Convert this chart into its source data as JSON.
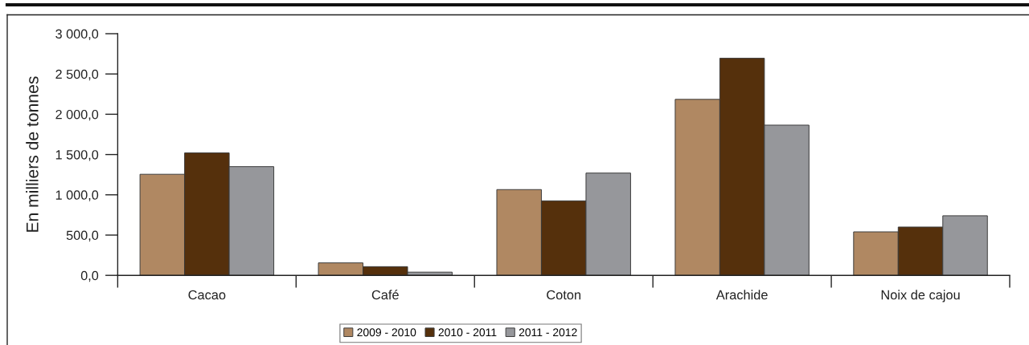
{
  "chart_data": {
    "type": "bar",
    "ylabel": "En milliers de tonnes",
    "categories": [
      "Cacao",
      "Café",
      "Coton",
      "Arachide",
      "Noix de cajou"
    ],
    "series": [
      {
        "name": "2009 - 2010",
        "color": "#b08862",
        "values": [
          1255,
          155,
          1065,
          2185,
          540
        ]
      },
      {
        "name": "2010 - 2011",
        "color": "#55300c",
        "values": [
          1520,
          108,
          925,
          2695,
          600
        ]
      },
      {
        "name": "2011 - 2012",
        "color": "#96979b",
        "values": [
          1350,
          40,
          1270,
          1865,
          740
        ]
      }
    ],
    "ylim": [
      0,
      3000
    ],
    "yticks": [
      {
        "value": 0,
        "label": "0,0"
      },
      {
        "value": 500,
        "label": "500,0"
      },
      {
        "value": 1000,
        "label": "1 000,0"
      },
      {
        "value": 1500,
        "label": "1 500,0"
      },
      {
        "value": 2000,
        "label": "2 000,0"
      },
      {
        "value": 2500,
        "label": "2 500,0"
      },
      {
        "value": 3000,
        "label": "3 000,0"
      }
    ],
    "grid": false,
    "legend": "bottom"
  }
}
